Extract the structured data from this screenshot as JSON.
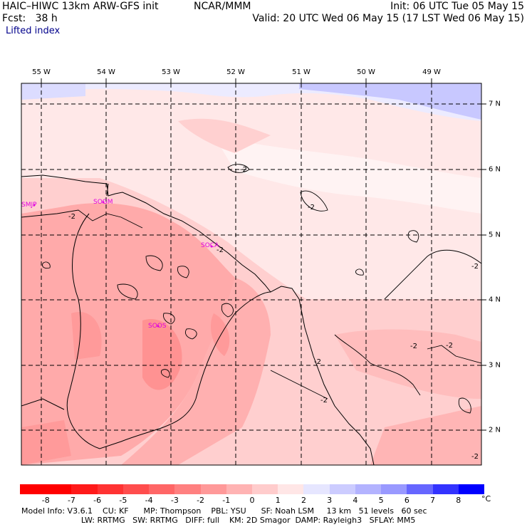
{
  "header": {
    "model": "HAIC–HIWC 13km ARW-GFS init",
    "center": "NCAR/MMM",
    "fcst": "Fcst:   38 h",
    "init": "Init: 06 UTC Tue 05 May 15",
    "valid": "Valid: 20 UTC Wed 06 May 15 (17 LST Wed 06 May 15)",
    "field": "Lifted index"
  },
  "map": {
    "longitude_labels": [
      "55 W",
      "54 W",
      "53 W",
      "52 W",
      "51 W",
      "50 W",
      "49 W"
    ],
    "latitude_labels": [
      "7 N",
      "6 N",
      "5 N",
      "4 N",
      "3 N",
      "2 N"
    ],
    "stations": [
      "SMJP",
      "SOGM",
      "SOCA",
      "SOOS"
    ],
    "contour_labels": [
      "-2",
      "-2",
      "-2",
      "-2",
      "-2",
      "-2",
      "-2",
      "-2",
      "-2",
      "-2"
    ]
  },
  "colorbar": {
    "ticks": [
      "-8",
      "-7",
      "-6",
      "-5",
      "-4",
      "-3",
      "-2",
      "-1",
      "0",
      "1",
      "2",
      "3",
      "4",
      "5",
      "6",
      "7",
      "8"
    ],
    "unit": "°C",
    "colors": [
      "#ff0000",
      "#ff1a1a",
      "#ff3333",
      "#ff4d4d",
      "#ff6666",
      "#ff8080",
      "#ff9999",
      "#ffb3b3",
      "#ffcccc",
      "#ffe6e6",
      "#e6e6ff",
      "#ccccff",
      "#b3b3ff",
      "#9999ff",
      "#6666ff",
      "#3333ff",
      "#0000ff"
    ]
  },
  "footer": {
    "line1": "Model Info: V3.6.1    CU: KF      MP: Thompson    PBL: YSU      SF: Noah LSM     13 km   51 levels   60 sec",
    "line2": "                        LW: RRTMG   SW: RRTMG   DIFF: full    KM: 2D Smagor  DAMP: Rayleigh3   SFLAY: MM5"
  }
}
